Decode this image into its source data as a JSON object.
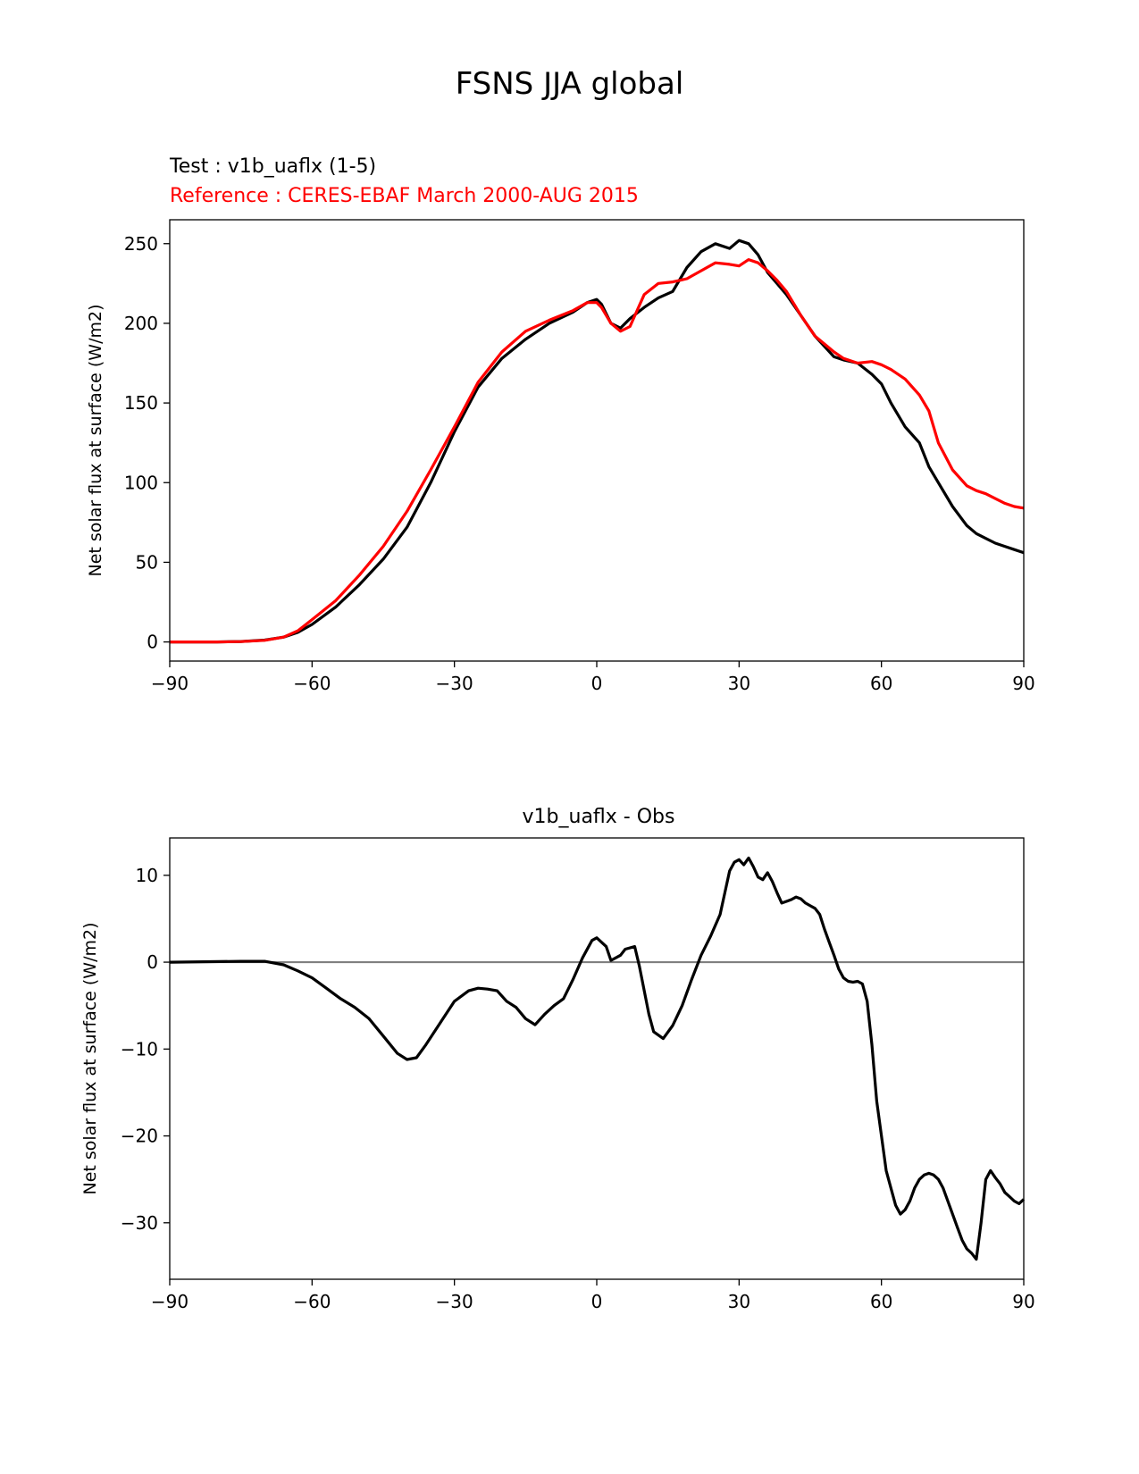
{
  "figure_title": "FSNS JJA global",
  "chart_data": [
    {
      "type": "line",
      "title": "",
      "subtitle_test": "Test : v1b_uaflx (1-5)",
      "subtitle_ref": "Reference : CERES-EBAF March 2000-AUG 2015",
      "xlabel": "",
      "ylabel": "Net solar flux at surface (W/m2)",
      "xlim": [
        -90,
        90
      ],
      "ylim": [
        -12,
        265
      ],
      "xticks": [
        -90,
        -60,
        -30,
        0,
        30,
        60,
        90
      ],
      "xtick_labels": [
        "−90",
        "−60",
        "−30",
        "0",
        "30",
        "60",
        "90"
      ],
      "yticks": [
        0,
        50,
        100,
        150,
        200,
        250
      ],
      "ytick_labels": [
        "0",
        "50",
        "100",
        "150",
        "200",
        "250"
      ],
      "grid": false,
      "series": [
        {
          "color": "#000000",
          "x": [
            -90,
            -80,
            -75,
            -70,
            -66,
            -63,
            -60,
            -55,
            -50,
            -45,
            -40,
            -35,
            -30,
            -25,
            -20,
            -15,
            -10,
            -5,
            -2,
            0,
            1,
            3,
            5,
            7,
            10,
            13,
            16,
            19,
            22,
            25,
            28,
            30,
            32,
            34,
            36,
            38,
            40,
            43,
            46,
            50,
            52,
            55,
            58,
            60,
            62,
            65,
            68,
            70,
            72,
            75,
            78,
            80,
            82,
            84,
            86,
            88,
            90
          ],
          "y": [
            0,
            0,
            0.3,
            1.2,
            3,
            6,
            11,
            22,
            36,
            52,
            72,
            100,
            132,
            160,
            178,
            190,
            200,
            207,
            213,
            215,
            212,
            200,
            197,
            203,
            210,
            216,
            220,
            235,
            245,
            250,
            247,
            252,
            250,
            243,
            232,
            225,
            218,
            205,
            192,
            179,
            177,
            175,
            168,
            162,
            150,
            135,
            125,
            110,
            100,
            85,
            73,
            68,
            65,
            62,
            60,
            58,
            56
          ]
        },
        {
          "color": "#ff0000",
          "x": [
            -90,
            -80,
            -75,
            -70,
            -66,
            -63,
            -60,
            -55,
            -50,
            -45,
            -40,
            -35,
            -30,
            -25,
            -20,
            -15,
            -10,
            -5,
            -2,
            0,
            1,
            3,
            5,
            7,
            10,
            13,
            16,
            19,
            22,
            25,
            28,
            30,
            32,
            34,
            36,
            38,
            40,
            43,
            46,
            50,
            52,
            55,
            58,
            60,
            62,
            65,
            68,
            70,
            72,
            75,
            78,
            80,
            82,
            84,
            86,
            88,
            90
          ],
          "y": [
            0,
            0,
            0.2,
            1,
            3,
            7,
            14,
            26,
            42,
            60,
            82,
            108,
            135,
            163,
            182,
            195,
            202,
            208,
            213,
            213,
            210,
            200,
            195,
            198,
            218,
            225,
            226,
            228,
            233,
            238,
            237,
            236,
            240,
            238,
            233,
            227,
            220,
            205,
            192,
            182,
            178,
            175,
            176,
            174,
            171,
            165,
            155,
            145,
            125,
            108,
            98,
            95,
            93,
            90,
            87,
            85,
            84
          ]
        }
      ]
    },
    {
      "type": "line",
      "title": "v1b_uaflx - Obs",
      "xlabel": "",
      "ylabel": "Net solar flux at surface (W/m2)",
      "xlim": [
        -90,
        90
      ],
      "ylim": [
        -36.5,
        14.3
      ],
      "xticks": [
        -90,
        -60,
        -30,
        0,
        30,
        60,
        90
      ],
      "xtick_labels": [
        "−90",
        "−60",
        "−30",
        "0",
        "30",
        "60",
        "90"
      ],
      "yticks": [
        -30,
        -20,
        -10,
        0,
        10
      ],
      "ytick_labels": [
        "−30",
        "−20",
        "−10",
        "0",
        "10"
      ],
      "grid": false,
      "zero_line_color": "#808080",
      "series": [
        {
          "color": "#000000",
          "x": [
            -90,
            -75,
            -70,
            -66,
            -63,
            -60,
            -57,
            -54,
            -51,
            -48,
            -45,
            -42,
            -40,
            -38,
            -36,
            -33,
            -30,
            -27,
            -25,
            -23,
            -21,
            -19,
            -17,
            -15,
            -13,
            -11,
            -9,
            -7,
            -5,
            -3,
            -1,
            0,
            2,
            3,
            5,
            6,
            8,
            9,
            11,
            12,
            14,
            16,
            18,
            20,
            22,
            24,
            26,
            27,
            28,
            29,
            30,
            31,
            32,
            33,
            34,
            35,
            36,
            37,
            38,
            39,
            40,
            41,
            42,
            43,
            44,
            45,
            46,
            47,
            48,
            49,
            50,
            51,
            52,
            53,
            54,
            55,
            56,
            57,
            58,
            59,
            60,
            61,
            62,
            63,
            64,
            65,
            66,
            67,
            68,
            69,
            70,
            71,
            72,
            73,
            74,
            75,
            76,
            77,
            78,
            79,
            80,
            81,
            82,
            83,
            84,
            85,
            86,
            87,
            88,
            89,
            90
          ],
          "y": [
            0,
            0.1,
            0.1,
            -0.3,
            -1,
            -1.8,
            -3,
            -4.2,
            -5.2,
            -6.5,
            -8.5,
            -10.5,
            -11.2,
            -11,
            -9.5,
            -7,
            -4.5,
            -3.3,
            -3,
            -3.1,
            -3.3,
            -4.5,
            -5.2,
            -6.5,
            -7.2,
            -6,
            -5,
            -4.2,
            -2,
            0.5,
            2.5,
            2.8,
            1.8,
            0.2,
            0.8,
            1.5,
            1.8,
            -0.5,
            -6,
            -8,
            -8.8,
            -7.3,
            -5,
            -2,
            0.8,
            3,
            5.5,
            8,
            10.5,
            11.5,
            11.8,
            11.2,
            12,
            11,
            9.8,
            9.5,
            10.3,
            9.3,
            8,
            6.8,
            7,
            7.2,
            7.5,
            7.3,
            6.8,
            6.5,
            6.2,
            5.5,
            3.8,
            2.3,
            0.8,
            -0.8,
            -1.8,
            -2.2,
            -2.3,
            -2.2,
            -2.5,
            -4.5,
            -9.5,
            -16,
            -20,
            -24,
            -26,
            -28,
            -29,
            -28.5,
            -27.5,
            -26,
            -25,
            -24.5,
            -24.3,
            -24.5,
            -25,
            -26,
            -27.5,
            -29,
            -30.5,
            -32,
            -33,
            -33.5,
            -34.2,
            -30,
            -25,
            -24,
            -24.8,
            -25.5,
            -26.5,
            -27,
            -27.5,
            -27.8,
            -27.3
          ]
        }
      ]
    }
  ]
}
